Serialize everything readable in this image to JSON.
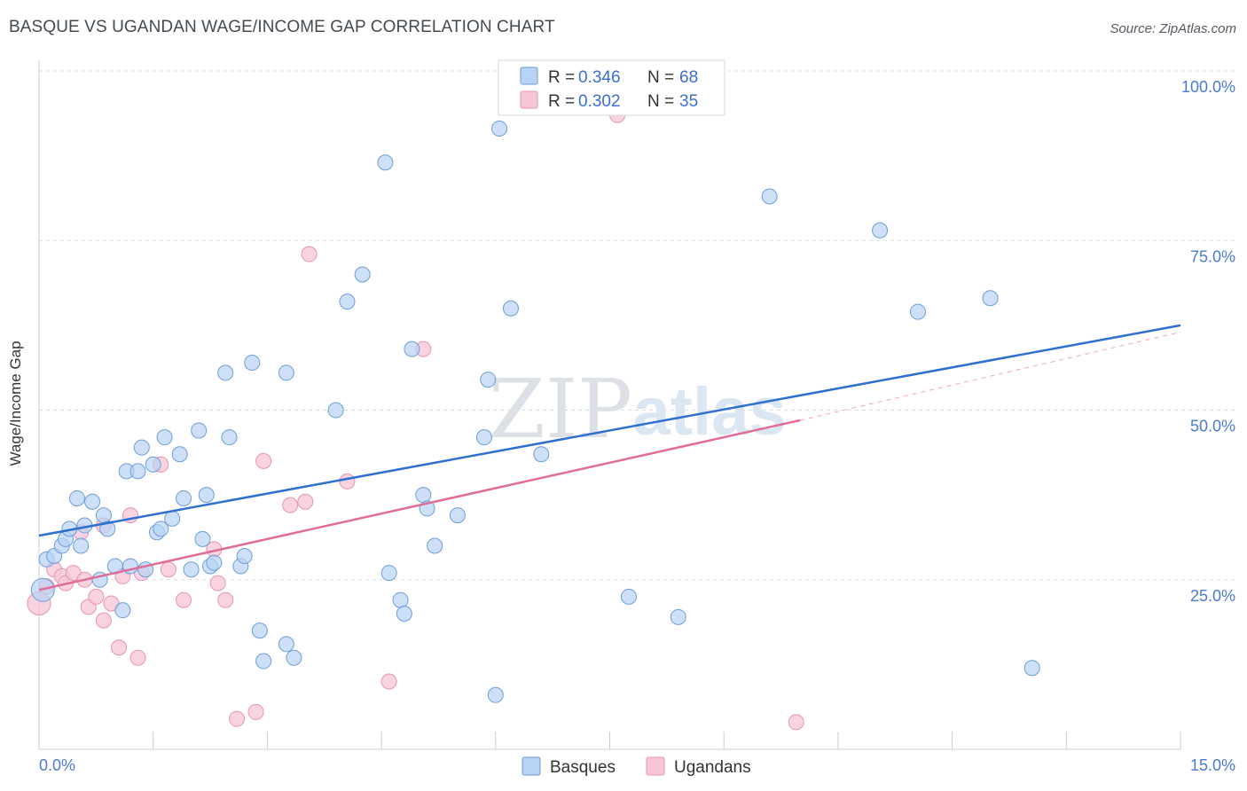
{
  "title": "BASQUE VS UGANDAN WAGE/INCOME GAP CORRELATION CHART",
  "source": "Source: ZipAtlas.com",
  "colors": {
    "basques_fill": "#b8d3f3",
    "basques_stroke": "#6e9ed8",
    "basques_line": "#2f6fcf",
    "ugandans_fill": "#f7c6d6",
    "ugandans_stroke": "#e595b1",
    "ugandans_line": "#e06d98",
    "tick_text": "#4a7bd0",
    "grid": "#d9dde3"
  },
  "legend": {
    "rows": [
      {
        "r_label": "R = ",
        "r_value": "0.346",
        "n_label": "N = ",
        "n_value": "68"
      },
      {
        "r_label": "R = ",
        "r_value": "0.302",
        "n_label": "N = ",
        "n_value": "35"
      }
    ]
  },
  "chart_data": {
    "type": "scatter",
    "title": "BASQUE VS UGANDAN WAGE/INCOME GAP CORRELATION CHART",
    "xlabel": "",
    "ylabel": "Wage/Income Gap",
    "xlim": [
      0,
      15
    ],
    "ylim": [
      0,
      100
    ],
    "x_tick_labels": [
      "0.0%",
      "15.0%"
    ],
    "y_ticks": [
      25,
      50,
      75,
      100
    ],
    "y_tick_labels": [
      "25.0%",
      "50.0%",
      "75.0%",
      "100.0%"
    ],
    "grid": true,
    "legend_position": "top-center",
    "watermark": {
      "zip": "ZIP",
      "atlas": "atlas"
    },
    "series": [
      {
        "name": "Basques",
        "trend": {
          "x": [
            0,
            15
          ],
          "y": [
            31.5,
            62.5
          ],
          "dashed_extension": false
        },
        "points": [
          [
            0.05,
            23.5
          ],
          [
            0.1,
            28
          ],
          [
            0.2,
            28.5
          ],
          [
            0.3,
            30
          ],
          [
            0.35,
            31
          ],
          [
            0.4,
            32.5
          ],
          [
            0.5,
            37
          ],
          [
            0.55,
            30
          ],
          [
            0.6,
            33
          ],
          [
            0.7,
            36.5
          ],
          [
            0.8,
            25
          ],
          [
            0.85,
            34.5
          ],
          [
            0.9,
            32.5
          ],
          [
            1.0,
            27
          ],
          [
            1.1,
            20.5
          ],
          [
            1.15,
            41
          ],
          [
            1.2,
            27
          ],
          [
            1.3,
            41
          ],
          [
            1.35,
            44.5
          ],
          [
            1.4,
            26.5
          ],
          [
            1.5,
            42
          ],
          [
            1.55,
            32
          ],
          [
            1.6,
            32.5
          ],
          [
            1.65,
            46
          ],
          [
            1.75,
            34
          ],
          [
            1.85,
            43.5
          ],
          [
            1.9,
            37
          ],
          [
            2.0,
            26.5
          ],
          [
            2.1,
            47
          ],
          [
            2.15,
            31
          ],
          [
            2.2,
            37.5
          ],
          [
            2.25,
            27
          ],
          [
            2.3,
            27.5
          ],
          [
            2.45,
            55.5
          ],
          [
            2.5,
            46
          ],
          [
            2.65,
            27
          ],
          [
            2.7,
            28.5
          ],
          [
            2.8,
            57
          ],
          [
            2.9,
            17.5
          ],
          [
            2.95,
            13
          ],
          [
            3.25,
            55.5
          ],
          [
            3.25,
            15.5
          ],
          [
            3.35,
            13.5
          ],
          [
            3.9,
            50
          ],
          [
            4.05,
            66
          ],
          [
            4.25,
            70
          ],
          [
            4.55,
            86.5
          ],
          [
            4.6,
            26
          ],
          [
            4.75,
            22
          ],
          [
            4.8,
            20
          ],
          [
            4.9,
            59
          ],
          [
            5.05,
            37.5
          ],
          [
            5.1,
            35.5
          ],
          [
            5.2,
            30
          ],
          [
            5.5,
            34.5
          ],
          [
            5.85,
            46
          ],
          [
            5.9,
            54.5
          ],
          [
            6.0,
            8
          ],
          [
            6.05,
            91.5
          ],
          [
            6.2,
            65
          ],
          [
            6.6,
            43.5
          ],
          [
            7.75,
            22.5
          ],
          [
            8.4,
            19.5
          ],
          [
            9.6,
            81.5
          ],
          [
            11.05,
            76.5
          ],
          [
            11.55,
            64.5
          ],
          [
            12.5,
            66.5
          ],
          [
            13.05,
            12
          ]
        ]
      },
      {
        "name": "Ugandans",
        "trend": {
          "x": [
            0,
            10
          ],
          "y": [
            23.5,
            48.5
          ],
          "dashed_extension": true,
          "dashed_to": [
            15,
            61.5
          ]
        },
        "points": [
          [
            0.0,
            21.5
          ],
          [
            0.1,
            24
          ],
          [
            0.2,
            26.5
          ],
          [
            0.3,
            25.5
          ],
          [
            0.35,
            24.5
          ],
          [
            0.45,
            26
          ],
          [
            0.55,
            32
          ],
          [
            0.6,
            25
          ],
          [
            0.65,
            21
          ],
          [
            0.75,
            22.5
          ],
          [
            0.85,
            19
          ],
          [
            0.85,
            33
          ],
          [
            0.95,
            21.5
          ],
          [
            1.05,
            15
          ],
          [
            1.1,
            25.5
          ],
          [
            1.2,
            34.5
          ],
          [
            1.3,
            13.5
          ],
          [
            1.35,
            26
          ],
          [
            1.6,
            42
          ],
          [
            1.7,
            26.5
          ],
          [
            1.9,
            22
          ],
          [
            2.3,
            29.5
          ],
          [
            2.35,
            24.5
          ],
          [
            2.45,
            22
          ],
          [
            2.6,
            4.5
          ],
          [
            2.85,
            5.5
          ],
          [
            2.95,
            42.5
          ],
          [
            3.3,
            36
          ],
          [
            3.5,
            36.5
          ],
          [
            3.55,
            73
          ],
          [
            4.05,
            39.5
          ],
          [
            4.6,
            10
          ],
          [
            5.05,
            59
          ],
          [
            7.6,
            93.5
          ],
          [
            9.95,
            4
          ]
        ]
      }
    ]
  }
}
